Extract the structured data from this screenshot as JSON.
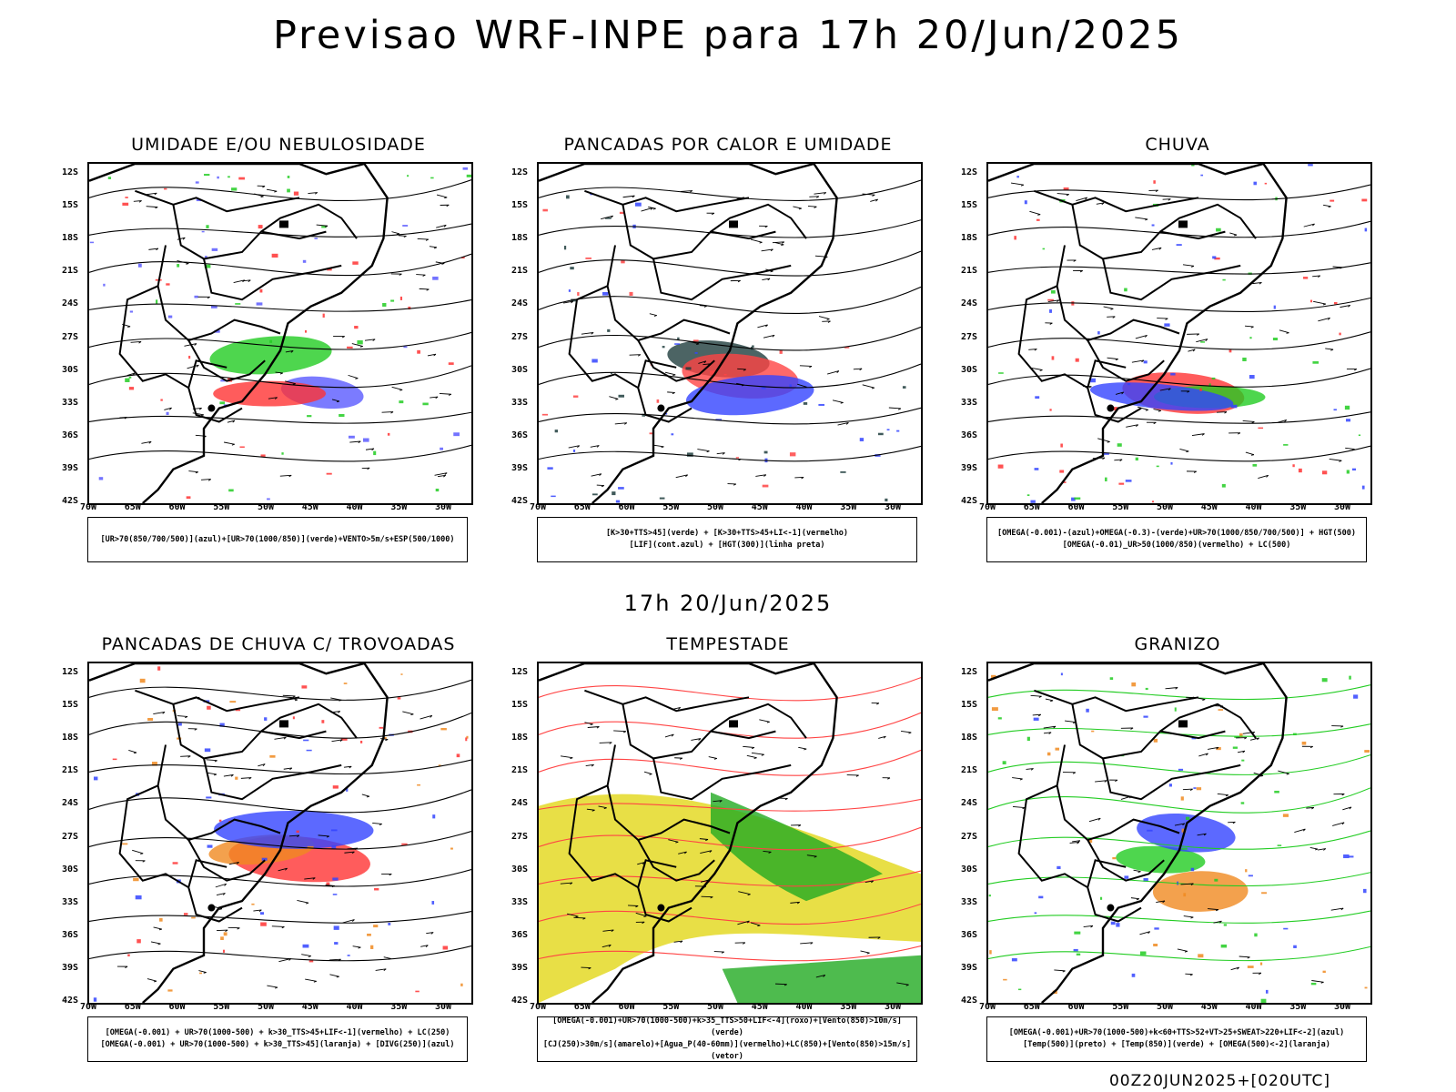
{
  "title": "Previsao WRF-INPE  para 17h 20/Jun/2025",
  "mid_title": "17h 20/Jun/2025",
  "footer": "00Z20JUN2025+[020UTC]",
  "lat_labels": [
    "12S",
    "15S",
    "18S",
    "21S",
    "24S",
    "27S",
    "30S",
    "33S",
    "36S",
    "39S",
    "42S"
  ],
  "lon_labels": [
    "70W",
    "65W",
    "60W",
    "55W",
    "50W",
    "45W",
    "40W",
    "35W",
    "30W"
  ],
  "panels": [
    {
      "title": "UMIDADE E/OU NEBULOSIDADE",
      "legend": [
        "[UR>70(850/700/500)](azul)+[UR>70(1000/850)](verde)+VENTO>5m/s+ESP(500/1000)"
      ],
      "colors": [
        "#5a5aff",
        "#22cc22",
        "#ff3333"
      ]
    },
    {
      "title": "PANCADAS POR CALOR E UMIDADE",
      "legend": [
        "[K>30+TTS>45](verde) + [K>30+TTS>45+LI<-1](vermelho)",
        "[LIF](cont.azul) + [HGT(300)](linha preta)"
      ],
      "colors": [
        "#1f3d3d",
        "#ff4444",
        "#3344ff"
      ]
    },
    {
      "title": "CHUVA",
      "legend": [
        "[OMEGA(-0.001)-(azul)+OMEGA(-0.3)-(verde)+UR>70(1000/850/700/500)] + HGT(500)",
        "[OMEGA(-0.01)_UR>50(1000/850)(vermelho) + LC(500)"
      ],
      "colors": [
        "#ff3333",
        "#22cc22",
        "#3344ff"
      ]
    },
    {
      "title": "PANCADAS DE CHUVA C/ TROVOADAS",
      "legend": [
        "[OMEGA(-0.001) + UR>70(1000-500) + k>30_TTS>45+LIF<-1](vermelho) + LC(250)",
        "[OMEGA(-0.001) + UR>70(1000-500) + k>30_TTS>45](laranja) + [DIVG(250)](azul)"
      ],
      "colors": [
        "#ff3333",
        "#f08a20",
        "#3344ff"
      ]
    },
    {
      "title": "TEMPESTADE",
      "legend": [
        "[OMEGA(-0.001)+UR>70(1000-500)+k>35_TTS>50+LIF<-4](roxo)+[Vento(850)>10m/s](verde)",
        "[CJ(250)>30m/s](amarelo)+[Agua_P(40-60mm)](vermelho)+LC(850)+[Vento(850)>15m/s](vetor)"
      ],
      "colors": [
        "#e6dc32",
        "#22aa22",
        "#ff4444"
      ]
    },
    {
      "title": "GRANIZO",
      "legend": [
        "[OMEGA(-0.001)+UR>70(1000-500)+k<60+TTS>52+VT>25+SWEAT>220+LIF<-2](azul)",
        "[Temp(500)](preto) + [Temp(850)](verde) + [OMEGA(500)<-2](laranja)"
      ],
      "colors": [
        "#22cc22",
        "#f08a20",
        "#3344ff"
      ]
    }
  ]
}
